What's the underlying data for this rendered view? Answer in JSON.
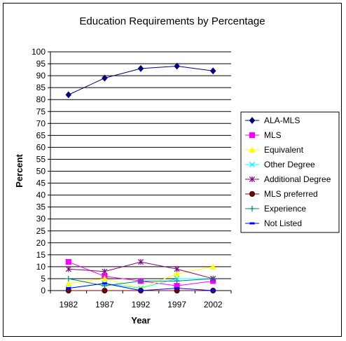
{
  "chart_data": {
    "type": "line",
    "title": "Education Requirements by Percentage",
    "xlabel": "Year",
    "ylabel": "Percent",
    "categories": [
      "1982",
      "1987",
      "1992",
      "1997",
      "2002"
    ],
    "ylim": [
      0,
      100
    ],
    "ytick_step": 5,
    "grid": true,
    "legend_position": "right",
    "series": [
      {
        "name": "ALA-MLS",
        "color": "#000080",
        "marker": "diamond",
        "values": [
          82,
          89,
          93,
          94,
          92
        ]
      },
      {
        "name": "MLS",
        "color": "#FF00FF",
        "marker": "square",
        "values": [
          12,
          6,
          4,
          2,
          4
        ]
      },
      {
        "name": "Equivalent",
        "color": "#FFFF00",
        "marker": "triangle",
        "values": [
          3,
          5,
          1,
          7,
          10
        ]
      },
      {
        "name": "Other Degree",
        "color": "#00FFFF",
        "marker": "x",
        "values": [
          1,
          3,
          1,
          5,
          5
        ]
      },
      {
        "name": "Additional Degree",
        "color": "#800080",
        "marker": "asterisk",
        "values": [
          9,
          8,
          12,
          9,
          5
        ]
      },
      {
        "name": "MLS preferred",
        "color": "#800000",
        "marker": "circle",
        "values": [
          0,
          0,
          0,
          0,
          0
        ]
      },
      {
        "name": "Experience",
        "color": "#008080",
        "marker": "plus",
        "values": [
          5,
          2,
          4,
          4,
          5
        ]
      },
      {
        "name": "Not Listed",
        "color": "#0000FF",
        "marker": "dash",
        "values": [
          1,
          3,
          0,
          1,
          0
        ]
      }
    ]
  }
}
